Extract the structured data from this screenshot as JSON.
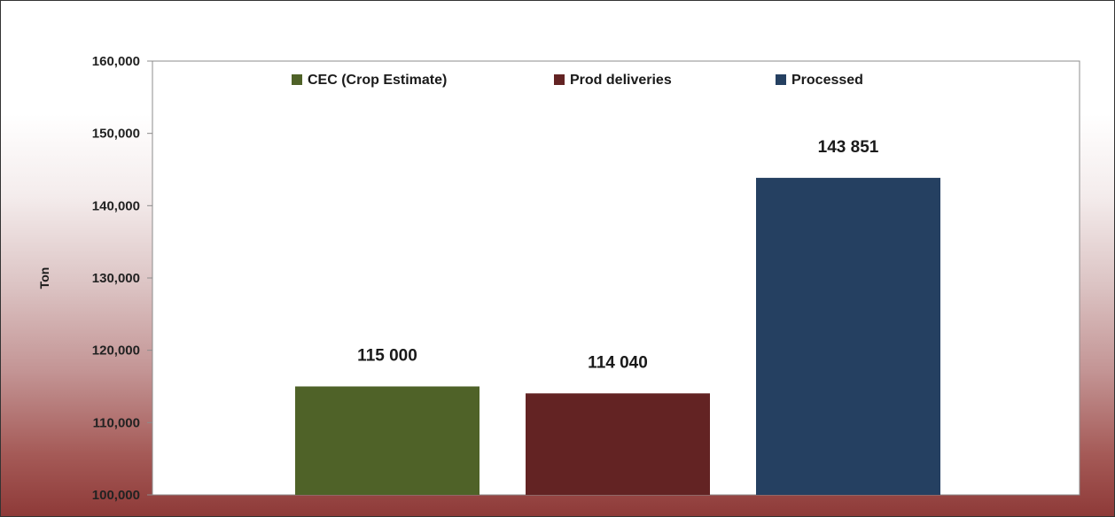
{
  "chart_data": {
    "type": "bar",
    "categories": [
      "CEC (Crop Estimate)",
      "Prod deliveries",
      "Processed"
    ],
    "values": [
      115000,
      114040,
      143851
    ],
    "data_labels": [
      "115 000",
      "114 040",
      "143 851"
    ],
    "colors": [
      "#4f6228",
      "#632323",
      "#254061"
    ],
    "ylabel": "Ton",
    "ylim": [
      100000,
      160000
    ],
    "yticks": [
      100000,
      110000,
      120000,
      130000,
      140000,
      150000,
      160000
    ],
    "ytick_labels": [
      "100,000",
      "110,000",
      "120,000",
      "130,000",
      "140,000",
      "150,000",
      "160,000"
    ],
    "legend": {
      "position": "top",
      "entries": [
        "CEC (Crop Estimate)",
        "Prod deliveries",
        "Processed"
      ]
    },
    "grid": false
  }
}
